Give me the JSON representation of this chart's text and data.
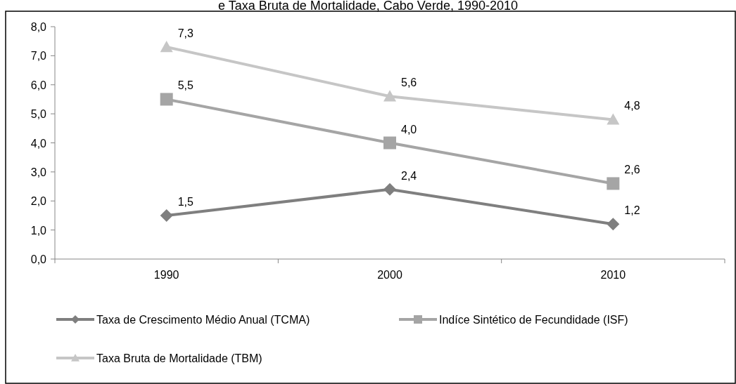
{
  "chart_data": {
    "type": "line",
    "title": "e Taxa Bruta de Mortalidade, Cabo Verde, 1990-2010",
    "categories": [
      "1990",
      "2000",
      "2010"
    ],
    "series": [
      {
        "name": "Taxa de Crescimento Médio Anual (TCMA)",
        "color": "#7f7f7f",
        "marker": "diamond",
        "values": [
          1.5,
          2.4,
          1.2
        ],
        "value_labels": [
          "1,5",
          "2,4",
          "1,2"
        ]
      },
      {
        "name": "Indíce Sintético de Fecundidade (ISF)",
        "color": "#a5a5a5",
        "marker": "square",
        "values": [
          5.5,
          4.0,
          2.6
        ],
        "value_labels": [
          "5,5",
          "4,0",
          "2,6"
        ]
      },
      {
        "name": "Taxa Bruta de Mortalidade (TBM)",
        "color": "#c6c6c6",
        "marker": "triangle",
        "values": [
          7.3,
          5.6,
          4.8
        ],
        "value_labels": [
          "7,3",
          "5,6",
          "4,8"
        ]
      }
    ],
    "ylim": [
      0,
      8
    ],
    "yticks": [
      {
        "value": 0,
        "label": "0,0"
      },
      {
        "value": 1,
        "label": "1,0"
      },
      {
        "value": 2,
        "label": "2,0"
      },
      {
        "value": 3,
        "label": "3,0"
      },
      {
        "value": 4,
        "label": "4,0"
      },
      {
        "value": 5,
        "label": "5,0"
      },
      {
        "value": 6,
        "label": "6,0"
      },
      {
        "value": 7,
        "label": "7,0"
      },
      {
        "value": 8,
        "label": "8,0"
      }
    ],
    "grid": false,
    "legend": "bottom",
    "line_style": "solid"
  }
}
